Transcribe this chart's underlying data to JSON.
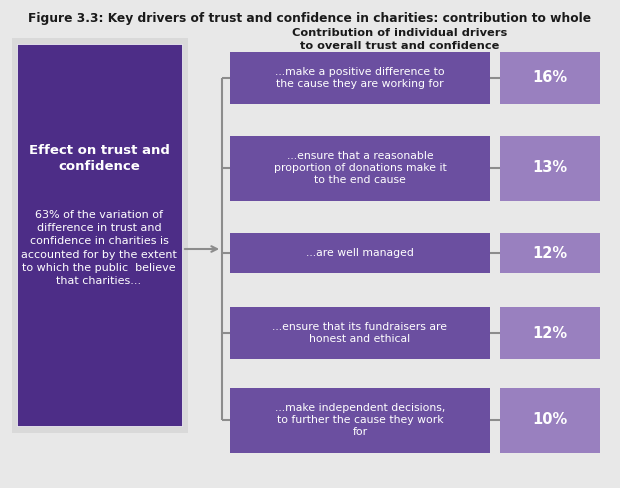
{
  "title": "Figure 3.3: Key drivers of trust and confidence in charities: contribution to whole",
  "left_box_bold": "Effect on trust and\nconfidence",
  "left_box_text": "63% of the variation of\ndifference in trust and\nconfidence in charities is\naccounted for by the extent\nto which the public  believe\nthat charities...",
  "right_header": "Contribution of individual drivers\nto overall trust and confidence",
  "drivers": [
    {
      "text": "...make a positive difference to\nthe cause they are working for",
      "pct": "16%",
      "lines": 2
    },
    {
      "text": "...ensure that a reasonable\nproportion of donations make it\nto the end cause",
      "pct": "13%",
      "lines": 3
    },
    {
      "text": "...are well managed",
      "pct": "12%",
      "lines": 1
    },
    {
      "text": "...ensure that its fundraisers are\nhonest and ethical",
      "pct": "12%",
      "lines": 2
    },
    {
      "text": "...make independent decisions,\nto further the cause they work\nfor",
      "pct": "10%",
      "lines": 3
    }
  ],
  "dark_purple": "#4d2d87",
  "medium_purple": "#6b4fa0",
  "light_purple": "#9980bf",
  "bg_gray": "#d9d9d9",
  "bg_light": "#e8e8e8",
  "text_white": "#ffffff",
  "text_dark": "#1a1a1a",
  "connector_color": "#8c8c8c",
  "title_color": "#1a1a1a",
  "figw": 6.2,
  "figh": 4.88,
  "dpi": 100
}
